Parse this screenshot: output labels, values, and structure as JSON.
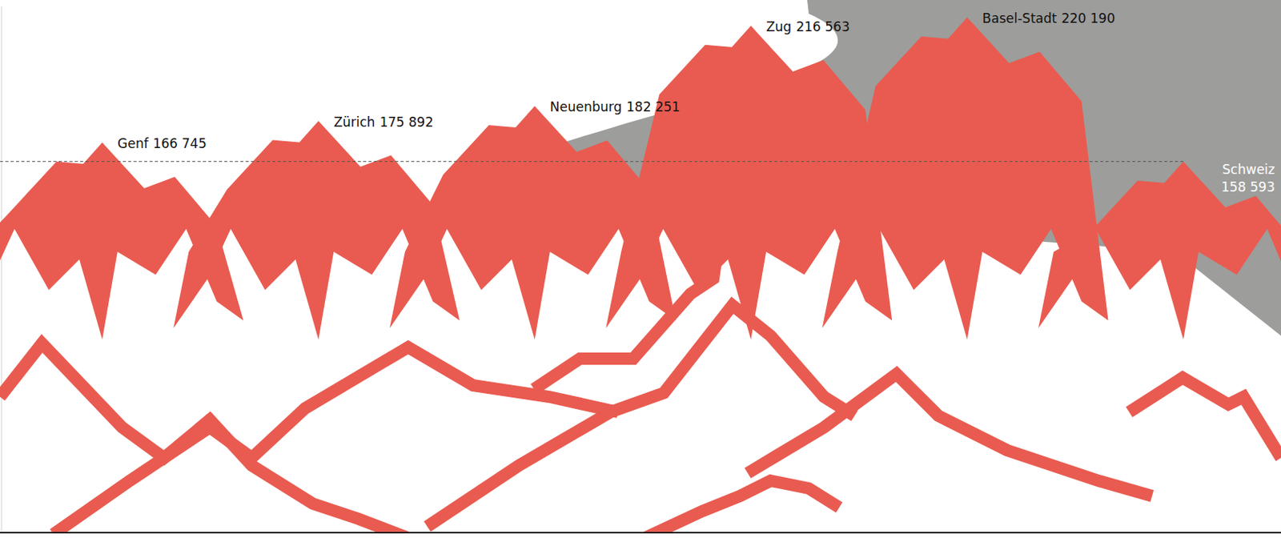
{
  "chart_data": {
    "type": "mountain",
    "categories": [
      "Genf",
      "Zürich",
      "Neuenburg",
      "Zug",
      "Basel-Stadt"
    ],
    "values": [
      166745,
      175892,
      182251,
      216563,
      220190
    ],
    "value_labels": [
      "166 745",
      "175 892",
      "182 251",
      "216 563",
      "220 190"
    ],
    "reference": {
      "label": "Schweiz",
      "value": 158593,
      "value_label": "158 593"
    },
    "ylim": [
      0,
      225000
    ],
    "tick_labels": false,
    "color": "#e95b50"
  }
}
